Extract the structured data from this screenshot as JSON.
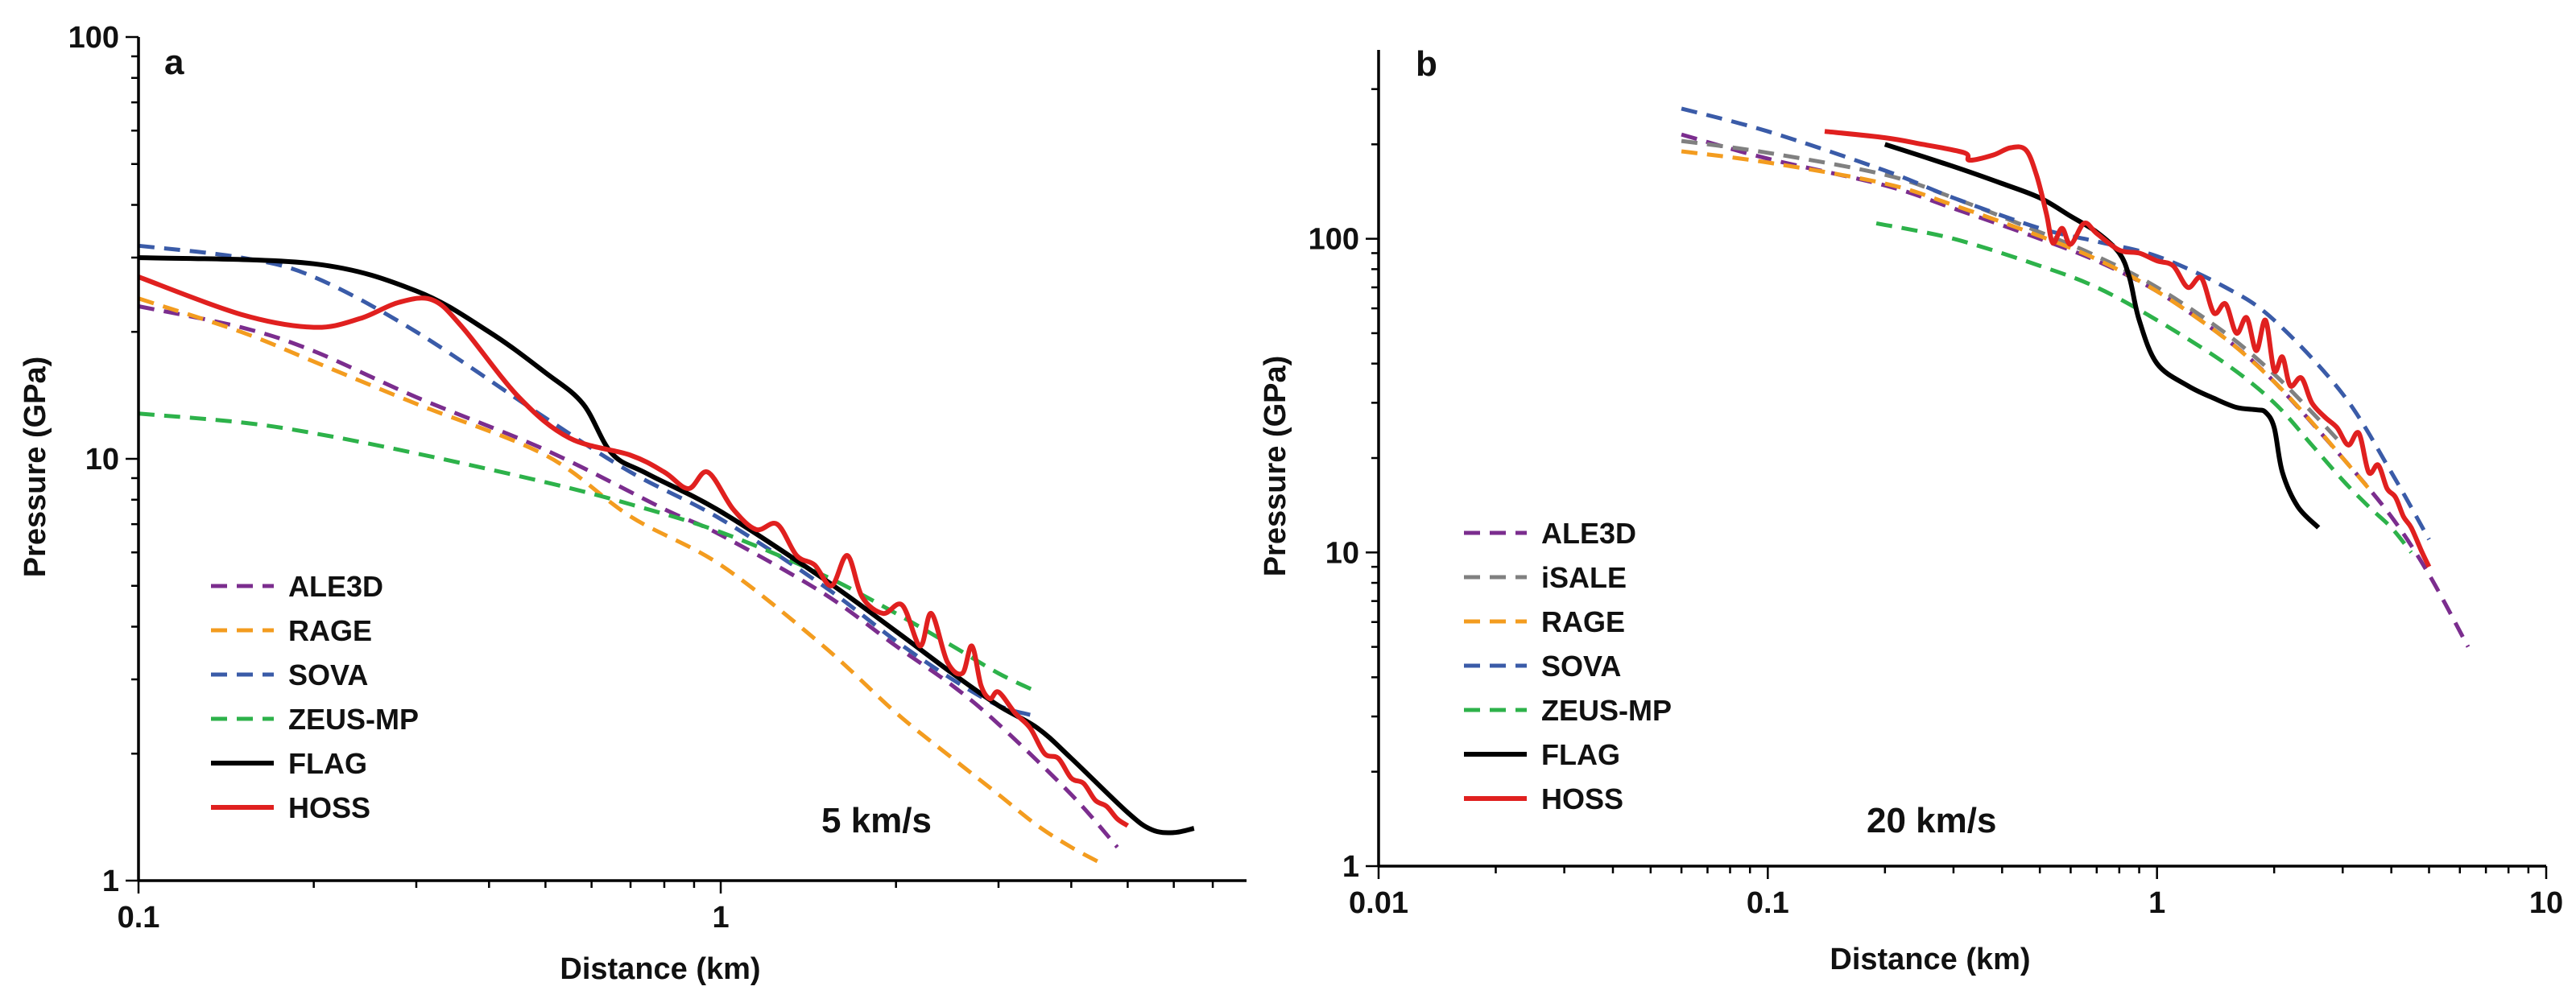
{
  "chart_data": [
    {
      "type": "line",
      "panel": "a",
      "annotation": "5 km/s",
      "xlabel": "Distance (km)",
      "ylabel": "Pressure (GPa)",
      "xscale": "log",
      "yscale": "log",
      "xlim": [
        0.1,
        8.0
      ],
      "ylim": [
        1,
        100
      ],
      "xticks": [
        {
          "v": 0.1,
          "label": "0.1"
        },
        {
          "v": 1,
          "label": "1"
        }
      ],
      "yticks": [
        {
          "v": 1,
          "label": "1"
        },
        {
          "v": 10,
          "label": "10"
        },
        {
          "v": 100,
          "label": "100"
        }
      ],
      "legend_position": "bottom-left",
      "series": [
        {
          "name": "ALE3D",
          "color": "#7B2D8E",
          "style": "dashed",
          "x": [
            0.1,
            0.15,
            0.2,
            0.3,
            0.5,
            0.8,
            1.0,
            1.5,
            2.0,
            2.5,
            3.0,
            4.0,
            4.8
          ],
          "y": [
            23,
            20.5,
            18,
            14,
            10.5,
            7.6,
            6.6,
            4.8,
            3.6,
            2.9,
            2.35,
            1.6,
            1.2
          ]
        },
        {
          "name": "RAGE",
          "color": "#F39C1F",
          "style": "dashed",
          "x": [
            0.1,
            0.15,
            0.2,
            0.3,
            0.5,
            0.7,
            1.0,
            1.5,
            2.0,
            2.5,
            3.0,
            3.5,
            4.0,
            4.5
          ],
          "y": [
            24,
            20,
            17,
            13.5,
            10.2,
            7.3,
            5.6,
            3.6,
            2.5,
            1.95,
            1.6,
            1.35,
            1.2,
            1.1
          ]
        },
        {
          "name": "SOVA",
          "color": "#3A5BA8",
          "style": "dashed",
          "x": [
            0.1,
            0.15,
            0.2,
            0.3,
            0.5,
            0.7,
            1.0,
            1.5,
            2.0,
            2.5,
            3.0,
            3.5
          ],
          "y": [
            32,
            30,
            27,
            20,
            12.5,
            9.3,
            7.2,
            5.0,
            3.7,
            3.0,
            2.6,
            2.45
          ]
        },
        {
          "name": "ZEUS-MP",
          "color": "#2DB24A",
          "style": "dashed",
          "x": [
            0.1,
            0.15,
            0.2,
            0.3,
            0.5,
            0.7,
            1.0,
            1.5,
            2.0,
            2.5,
            3.0,
            3.5
          ],
          "y": [
            12.8,
            12.2,
            11.5,
            10.3,
            8.8,
            7.8,
            6.7,
            5.3,
            4.3,
            3.6,
            3.1,
            2.8
          ]
        },
        {
          "name": "FLAG",
          "color": "#000000",
          "style": "solid",
          "x": [
            0.1,
            0.2,
            0.3,
            0.4,
            0.5,
            0.58,
            0.65,
            0.75,
            1.0,
            1.5,
            2.0,
            2.5,
            3.0,
            3.5,
            4.0,
            5.0,
            5.5,
            6.0,
            6.5
          ],
          "y": [
            30,
            29,
            25,
            20,
            16,
            13.5,
            10.3,
            9.2,
            7.5,
            5.2,
            3.9,
            3.1,
            2.6,
            2.3,
            1.95,
            1.45,
            1.32,
            1.3,
            1.33
          ]
        },
        {
          "name": "HOSS",
          "color": "#E0201F",
          "style": "solid",
          "x": [
            0.1,
            0.15,
            0.2,
            0.24,
            0.28,
            0.32,
            0.36,
            0.45,
            0.55,
            0.7,
            0.8,
            0.88,
            0.95,
            1.05,
            1.15,
            1.25,
            1.35,
            1.45,
            1.55,
            1.65,
            1.75,
            1.9,
            2.05,
            2.2,
            2.3,
            2.45,
            2.6,
            2.7,
            2.8,
            2.9,
            3.0,
            3.2,
            3.4,
            3.6,
            3.8,
            4.0,
            4.2,
            4.4,
            4.6,
            4.8,
            5.0
          ],
          "y": [
            27,
            22,
            20.5,
            21.5,
            23.5,
            23.8,
            20.5,
            14,
            11.2,
            10.2,
            9.3,
            8.5,
            9.3,
            7.6,
            6.8,
            7.0,
            5.9,
            5.6,
            5.0,
            5.9,
            4.7,
            4.3,
            4.5,
            3.6,
            4.3,
            3.3,
            3.1,
            3.6,
            2.9,
            2.7,
            2.8,
            2.5,
            2.3,
            2.0,
            1.95,
            1.75,
            1.7,
            1.55,
            1.5,
            1.4,
            1.35
          ]
        }
      ]
    },
    {
      "type": "line",
      "panel": "b",
      "annotation": "20 km/s",
      "xlabel": "Distance (km)",
      "ylabel": "Pressure (GPa)",
      "xscale": "log",
      "yscale": "log",
      "xlim": [
        0.01,
        10
      ],
      "ylim": [
        1,
        400
      ],
      "xticks": [
        {
          "v": 0.01,
          "label": "0.01"
        },
        {
          "v": 0.1,
          "label": "0.1"
        },
        {
          "v": 1,
          "label": "1"
        },
        {
          "v": 10,
          "label": "10"
        }
      ],
      "yticks": [
        {
          "v": 1,
          "label": "1"
        },
        {
          "v": 10,
          "label": "10"
        },
        {
          "v": 100,
          "label": "100"
        }
      ],
      "legend_position": "bottom-left",
      "series": [
        {
          "name": "ALE3D",
          "color": "#7B2D8E",
          "style": "dashed",
          "x": [
            0.06,
            0.1,
            0.2,
            0.3,
            0.5,
            0.7,
            1.0,
            1.5,
            2.0,
            3.0,
            4.0,
            5.0,
            6.3
          ],
          "y": [
            215,
            180,
            148,
            125,
            100,
            85,
            68,
            48,
            35,
            20,
            13,
            8.5,
            5.0
          ]
        },
        {
          "name": "iSALE",
          "color": "#808080",
          "style": "dashed",
          "x": [
            0.06,
            0.1,
            0.2,
            0.3,
            0.5,
            0.7,
            1.0,
            1.5,
            2.0,
            2.5,
            3.0
          ],
          "y": [
            205,
            188,
            160,
            135,
            105,
            88,
            70,
            50,
            37,
            28,
            22
          ]
        },
        {
          "name": "RAGE",
          "color": "#F39C1F",
          "style": "dashed",
          "x": [
            0.06,
            0.1,
            0.2,
            0.3,
            0.5,
            0.7,
            1.0,
            1.5,
            2.0,
            2.5,
            3.0,
            3.5
          ],
          "y": [
            190,
            175,
            150,
            128,
            102,
            86,
            68,
            48,
            35,
            26,
            20,
            16
          ]
        },
        {
          "name": "SOVA",
          "color": "#3A5BA8",
          "style": "dashed",
          "x": [
            0.06,
            0.1,
            0.2,
            0.3,
            0.5,
            0.7,
            1.0,
            1.5,
            2.0,
            3.0,
            4.0,
            5.0
          ],
          "y": [
            260,
            220,
            165,
            135,
            108,
            98,
            88,
            70,
            55,
            32,
            18,
            11
          ]
        },
        {
          "name": "ZEUS-MP",
          "color": "#2DB24A",
          "style": "dashed",
          "x": [
            0.19,
            0.3,
            0.5,
            0.7,
            1.0,
            1.5,
            2.0,
            2.5,
            3.0,
            3.5,
            4.0,
            4.5
          ],
          "y": [
            112,
            100,
            82,
            70,
            55,
            40,
            30,
            22,
            17,
            14,
            12,
            10
          ]
        },
        {
          "name": "FLAG",
          "color": "#000000",
          "style": "solid",
          "x": [
            0.2,
            0.3,
            0.4,
            0.5,
            0.6,
            0.7,
            0.8,
            0.85,
            0.9,
            1.0,
            1.2,
            1.4,
            1.6,
            1.8,
            1.9,
            2.0,
            2.1,
            2.3,
            2.6
          ],
          "y": [
            200,
            170,
            150,
            135,
            118,
            105,
            90,
            75,
            55,
            40,
            34,
            31,
            29,
            28.5,
            28,
            25,
            18,
            14,
            12
          ]
        },
        {
          "name": "HOSS",
          "color": "#E0201F",
          "style": "solid",
          "x": [
            0.14,
            0.2,
            0.25,
            0.32,
            0.33,
            0.38,
            0.42,
            0.46,
            0.49,
            0.52,
            0.54,
            0.57,
            0.6,
            0.65,
            0.7,
            0.8,
            0.9,
            1.0,
            1.1,
            1.2,
            1.3,
            1.4,
            1.5,
            1.6,
            1.7,
            1.8,
            1.9,
            2.0,
            2.1,
            2.2,
            2.35,
            2.5,
            2.7,
            2.9,
            3.1,
            3.3,
            3.5,
            3.7,
            3.9,
            4.1,
            4.3,
            4.5,
            4.8,
            5.0
          ],
          "y": [
            220,
            210,
            200,
            188,
            178,
            185,
            195,
            192,
            160,
            120,
            97,
            108,
            96,
            112,
            104,
            92,
            90,
            85,
            82,
            70,
            75,
            58,
            62,
            50,
            56,
            44,
            55,
            38,
            42,
            34,
            36,
            30,
            27,
            25,
            22,
            24,
            18,
            19,
            16,
            15,
            13,
            12,
            10,
            9
          ]
        }
      ]
    }
  ]
}
